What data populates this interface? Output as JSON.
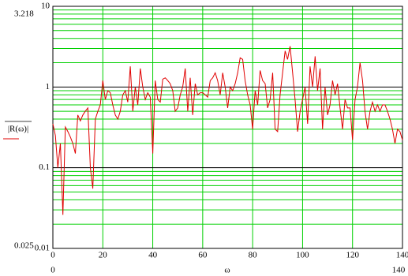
{
  "chart_data": {
    "type": "line",
    "log_y": true,
    "grid": true,
    "y_label": "|R(ω)|",
    "x_label": "ω",
    "y_upper_marker": "3.218",
    "y_lower_marker": "0.025",
    "x_left_marker": "0",
    "x_right_marker": "140",
    "xlim": [
      0,
      140
    ],
    "xticks": [
      0,
      20,
      40,
      60,
      80,
      100,
      120,
      140
    ],
    "ylim": [
      0.01,
      10
    ],
    "yticks": [
      0.01,
      0.1,
      1,
      10
    ],
    "series": [
      {
        "name": "|R(ω)|",
        "color": "#e00000",
        "x": [
          0,
          1,
          2,
          3,
          4,
          5,
          6,
          7,
          8,
          9,
          10,
          11,
          12,
          13,
          14,
          15,
          16,
          17,
          18,
          19,
          20,
          21,
          22,
          23,
          24,
          25,
          26,
          27,
          28,
          29,
          30,
          31,
          32,
          33,
          34,
          35,
          36,
          37,
          38,
          39,
          40,
          41,
          42,
          43,
          44,
          45,
          46,
          47,
          48,
          49,
          50,
          51,
          52,
          53,
          54,
          55,
          56,
          57,
          58,
          59,
          60,
          61,
          62,
          63,
          64,
          65,
          66,
          67,
          68,
          69,
          70,
          71,
          72,
          73,
          74,
          75,
          76,
          77,
          78,
          79,
          80,
          81,
          82,
          83,
          84,
          85,
          86,
          87,
          88,
          89,
          90,
          91,
          92,
          93,
          94,
          95,
          96,
          97,
          98,
          99,
          100,
          101,
          102,
          103,
          104,
          105,
          106,
          107,
          108,
          109,
          110,
          111,
          112,
          113,
          114,
          115,
          116,
          117,
          118,
          119,
          120,
          121,
          122,
          123,
          124,
          125,
          126,
          127,
          128,
          129,
          130,
          131,
          132,
          133,
          134,
          135,
          136,
          137,
          138,
          139,
          140
        ],
        "values": [
          0.35,
          0.25,
          0.1,
          0.2,
          0.026,
          0.32,
          0.28,
          0.24,
          0.2,
          0.15,
          0.45,
          0.38,
          0.45,
          0.5,
          0.55,
          0.1,
          0.055,
          0.4,
          0.5,
          0.6,
          1.2,
          0.7,
          0.9,
          0.85,
          0.6,
          0.45,
          0.4,
          0.5,
          0.8,
          0.9,
          0.65,
          1.8,
          0.5,
          1.0,
          0.6,
          1.7,
          1.0,
          0.7,
          0.85,
          0.75,
          0.15,
          1.2,
          0.7,
          0.65,
          1.25,
          1.3,
          1.2,
          1.1,
          0.9,
          0.5,
          0.55,
          0.8,
          1.0,
          1.7,
          0.5,
          1.3,
          0.45,
          1.1,
          0.8,
          0.85,
          0.85,
          0.8,
          0.75,
          1.2,
          1.3,
          1.5,
          1.2,
          0.8,
          1.5,
          1.0,
          0.55,
          1.0,
          0.9,
          1.1,
          1.5,
          2.3,
          2.2,
          1.2,
          0.8,
          0.6,
          0.3,
          0.9,
          0.6,
          1.6,
          1.2,
          1.1,
          0.55,
          0.7,
          1.5,
          0.3,
          0.28,
          0.8,
          1.5,
          2.8,
          2.2,
          3.2,
          1.5,
          0.7,
          0.28,
          0.5,
          0.7,
          1.0,
          0.35,
          1.8,
          1.0,
          2.4,
          0.9,
          1.7,
          0.3,
          1.0,
          0.45,
          0.6,
          1.2,
          0.8,
          1.1,
          0.55,
          0.3,
          0.7,
          0.55,
          0.55,
          0.22,
          0.7,
          1.0,
          2.0,
          1.2,
          0.5,
          0.3,
          0.5,
          0.65,
          0.5,
          0.6,
          0.5,
          0.6,
          0.6,
          0.5,
          0.4,
          0.3,
          0.2,
          0.3,
          0.28,
          0.22
        ]
      }
    ]
  }
}
